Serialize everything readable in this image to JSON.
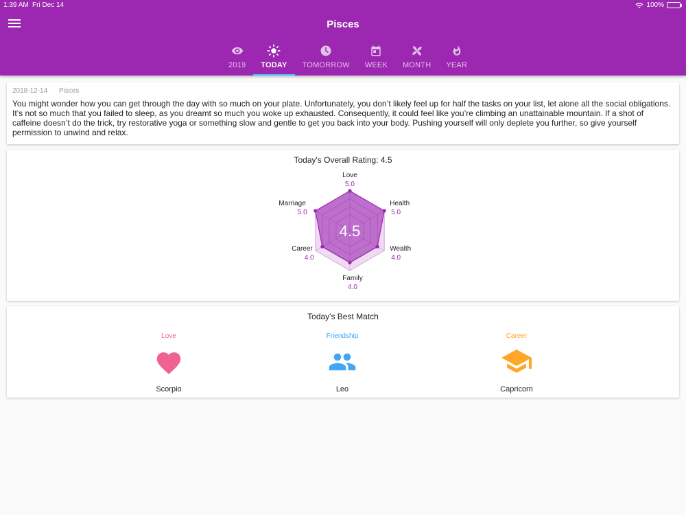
{
  "status": {
    "time": "1:39 AM",
    "date": "Fri Dec 14",
    "battery": "100%",
    "battery_level": 1.0
  },
  "header": {
    "title": "Pisces"
  },
  "tabs": [
    {
      "label": "2019",
      "icon": "eye-icon"
    },
    {
      "label": "TODAY",
      "icon": "sun-icon",
      "active": true
    },
    {
      "label": "TOMORROW",
      "icon": "clock-icon"
    },
    {
      "label": "WEEK",
      "icon": "calendar-icon"
    },
    {
      "label": "MONTH",
      "icon": "pinwheel-icon"
    },
    {
      "label": "YEAR",
      "icon": "flame-icon"
    }
  ],
  "horoscope": {
    "date": "2018-12-14",
    "sign": "Pisces",
    "text": "You might wonder how you can get through the day with so much on your plate. Unfortunately, you don’t likely feel up for half the tasks on your list, let alone all the social obligations. It’s not so much that you failed to sleep, as you dreamt so much you woke up exhausted. Consequently, it could feel like you’re climbing an unattainable mountain. If a shot of caffeine doesn’t do the trick, try restorative yoga or something slow and gentle to get you back into your body. Pushing yourself will only deplete you further, so give yourself permission to unwind and relax."
  },
  "rating": {
    "title": "Today's Overall Rating: 4.5",
    "overall": "4.5",
    "max": 5,
    "categories": [
      {
        "name": "Love",
        "value": "5.0"
      },
      {
        "name": "Health",
        "value": "5.0"
      },
      {
        "name": "Wealth",
        "value": "4.0"
      },
      {
        "name": "Family",
        "value": "4.0"
      },
      {
        "name": "Career",
        "value": "4.0"
      },
      {
        "name": "Marriage",
        "value": "5.0"
      }
    ]
  },
  "match": {
    "title": "Today's Best Match",
    "items": [
      {
        "category": "Love",
        "sign": "Scorpio",
        "icon": "heart-icon",
        "color": "#f06292"
      },
      {
        "category": "Friendship",
        "sign": "Leo",
        "icon": "people-icon",
        "color": "#42a5f5"
      },
      {
        "category": "Career",
        "sign": "Capricorn",
        "icon": "graduation-cap-icon",
        "color": "#ffa726"
      }
    ]
  },
  "colors": {
    "primary": "#9c27b0",
    "tab_indicator": "#40c4ff",
    "radar_fill": "#9c27b0"
  }
}
